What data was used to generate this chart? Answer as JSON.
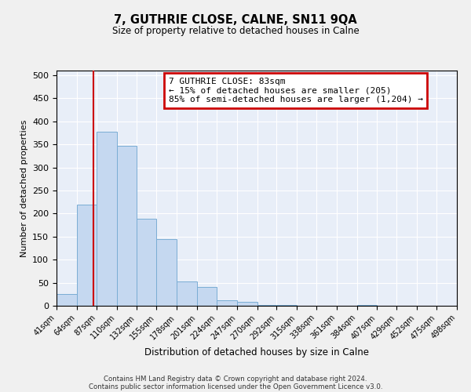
{
  "title": "7, GUTHRIE CLOSE, CALNE, SN11 9QA",
  "subtitle": "Size of property relative to detached houses in Calne",
  "xlabel": "Distribution of detached houses by size in Calne",
  "ylabel": "Number of detached properties",
  "bin_edges": [
    41,
    64,
    87,
    110,
    132,
    155,
    178,
    201,
    224,
    247,
    270,
    292,
    315,
    338,
    361,
    384,
    407,
    429,
    452,
    475,
    498
  ],
  "bar_heights": [
    25,
    220,
    378,
    347,
    188,
    144,
    53,
    40,
    12,
    8,
    2,
    1,
    0,
    0,
    0,
    1,
    0,
    0,
    0,
    0
  ],
  "bar_color": "#c5d8f0",
  "bar_edge_color": "#7aadd4",
  "tick_labels": [
    "41sqm",
    "64sqm",
    "87sqm",
    "110sqm",
    "132sqm",
    "155sqm",
    "178sqm",
    "201sqm",
    "224sqm",
    "247sqm",
    "270sqm",
    "292sqm",
    "315sqm",
    "338sqm",
    "361sqm",
    "384sqm",
    "407sqm",
    "429sqm",
    "452sqm",
    "475sqm",
    "498sqm"
  ],
  "vline_x": 83,
  "vline_color": "#cc0000",
  "ylim": [
    0,
    510
  ],
  "yticks": [
    0,
    50,
    100,
    150,
    200,
    250,
    300,
    350,
    400,
    450,
    500
  ],
  "annotation_title": "7 GUTHRIE CLOSE: 83sqm",
  "annotation_line1": "← 15% of detached houses are smaller (205)",
  "annotation_line2": "85% of semi-detached houses are larger (1,204) →",
  "annotation_box_color": "#cc0000",
  "footer1": "Contains HM Land Registry data © Crown copyright and database right 2024.",
  "footer2": "Contains public sector information licensed under the Open Government Licence v3.0.",
  "background_color": "#e8eef8",
  "fig_background_color": "#f0f0f0",
  "grid_color": "#ffffff"
}
